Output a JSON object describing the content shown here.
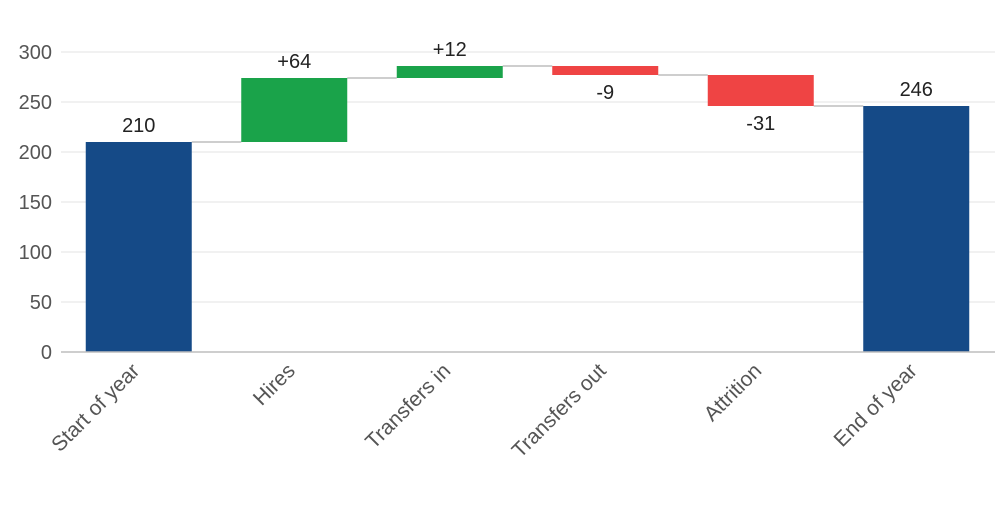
{
  "chart_data": {
    "type": "bar",
    "subtype": "waterfall",
    "categories": [
      "Start of year",
      "Hires",
      "Transfers in",
      "Transfers out",
      "Attrition",
      "End of year"
    ],
    "values": [
      210,
      64,
      12,
      -9,
      -31,
      246
    ],
    "kinds": [
      "total",
      "delta",
      "delta",
      "delta",
      "delta",
      "total"
    ],
    "data_labels": [
      "210",
      "+64",
      "+12",
      "-9",
      "-31",
      "246"
    ],
    "title": "",
    "xlabel": "",
    "ylabel": "",
    "ylim": [
      0,
      300
    ],
    "yticks": [
      0,
      50,
      100,
      150,
      200,
      250,
      300
    ],
    "grid": true,
    "legend": "none",
    "colors": {
      "total": "#154a87",
      "increase": "#1aa34a",
      "decrease": "#ef4444"
    }
  }
}
